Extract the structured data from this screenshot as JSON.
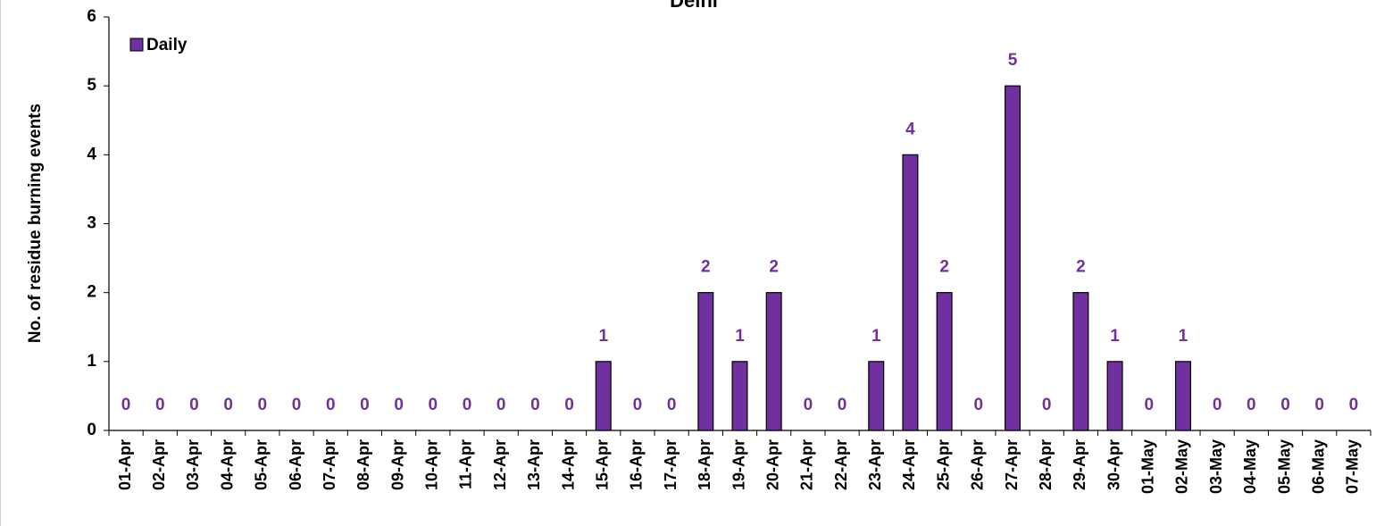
{
  "chart_data": {
    "type": "bar",
    "title": "Delhi",
    "y_label": "No. of residue burning events",
    "categories": [
      "01-Apr",
      "02-Apr",
      "03-Apr",
      "04-Apr",
      "05-Apr",
      "06-Apr",
      "07-Apr",
      "08-Apr",
      "09-Apr",
      "10-Apr",
      "11-Apr",
      "12-Apr",
      "13-Apr",
      "14-Apr",
      "15-Apr",
      "16-Apr",
      "17-Apr",
      "18-Apr",
      "19-Apr",
      "20-Apr",
      "21-Apr",
      "22-Apr",
      "23-Apr",
      "24-Apr",
      "25-Apr",
      "26-Apr",
      "27-Apr",
      "28-Apr",
      "29-Apr",
      "30-Apr",
      "01-May",
      "02-May",
      "03-May",
      "04-May",
      "05-May",
      "06-May",
      "07-May"
    ],
    "series": [
      {
        "name": "Daily",
        "color": "#7030a0",
        "values": [
          0,
          0,
          0,
          0,
          0,
          0,
          0,
          0,
          0,
          0,
          0,
          0,
          0,
          0,
          1,
          0,
          0,
          2,
          1,
          2,
          0,
          0,
          1,
          4,
          2,
          0,
          5,
          0,
          2,
          1,
          0,
          1,
          0,
          0,
          0,
          0,
          0
        ]
      }
    ],
    "ylim": [
      0,
      6
    ],
    "yticks": [
      0,
      1,
      2,
      3,
      4,
      5,
      6
    ],
    "legend": "upper left",
    "grid": false
  }
}
